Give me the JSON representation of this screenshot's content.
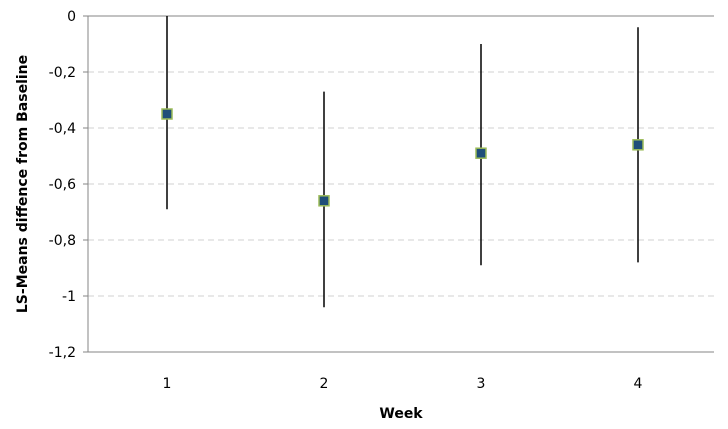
{
  "chart_data": {
    "type": "scatter",
    "title": "",
    "xlabel": "Week",
    "ylabel": "LS-Means diffence from Baseline",
    "categories": [
      "1",
      "2",
      "3",
      "4"
    ],
    "series": [
      {
        "values": [
          -0.35,
          -0.66,
          -0.49,
          -0.46
        ],
        "error_low": [
          -0.69,
          -1.04,
          -0.89,
          -0.88
        ],
        "error_high": [
          0.0,
          -0.27,
          -0.1,
          -0.04
        ]
      }
    ],
    "ylim": [
      -1.2,
      0
    ],
    "yticks": [
      0,
      -0.2,
      -0.4,
      -0.6,
      -0.8,
      -1,
      -1.2
    ],
    "ytick_labels": [
      "0",
      "-0,2",
      "-0,4",
      "-0,6",
      "-0,8",
      "-1",
      "-1,2"
    ],
    "grid": true,
    "legend": "none",
    "colors": {
      "marker_fill": "#1f4e79",
      "marker_edge": "#9bbb59",
      "errorbar": "#000000",
      "gridline": "#d0d0d0",
      "axis": "#868686"
    }
  }
}
